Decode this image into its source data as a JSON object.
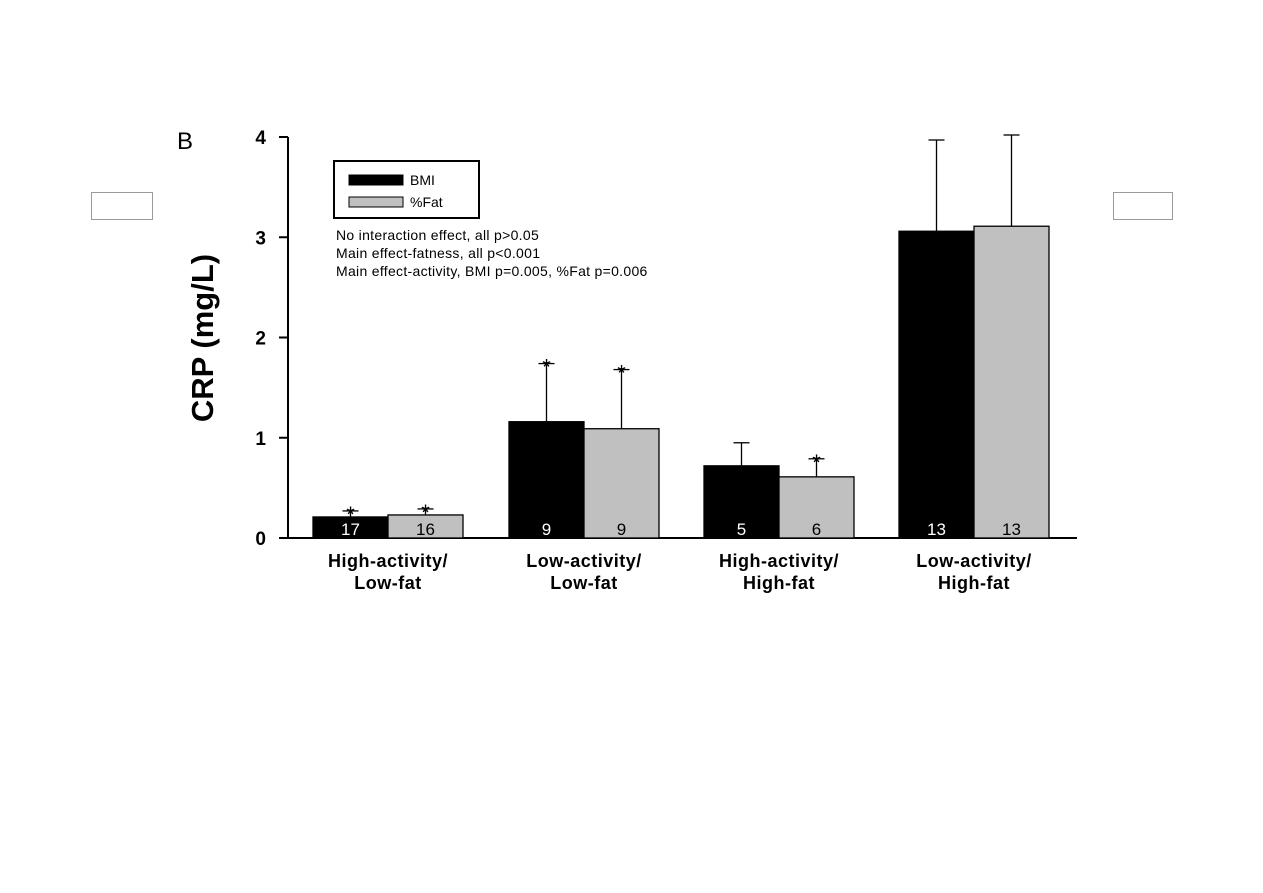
{
  "panel_label": "B",
  "chart_data": {
    "type": "bar",
    "categories": [
      [
        "High-activity/",
        "Low-fat"
      ],
      [
        "Low-activity/",
        "Low-fat"
      ],
      [
        "High-activity/",
        "High-fat"
      ],
      [
        "Low-activity/",
        "High-fat"
      ]
    ],
    "ylabel": "CRP (mg/L)",
    "ylim": [
      0,
      4
    ],
    "yticks": [
      "0",
      "1",
      "2",
      "3",
      "4"
    ],
    "series": [
      {
        "name": "BMI",
        "color": "#000000",
        "values": [
          0.21,
          1.16,
          0.72,
          3.06
        ],
        "error_upper": [
          0.27,
          1.74,
          0.95,
          3.97
        ],
        "n": [
          "17",
          "9",
          "5",
          "13"
        ],
        "significant": [
          true,
          true,
          false,
          false
        ],
        "n_color": "#ffffff"
      },
      {
        "name": "%Fat",
        "color": "#c0c0c0",
        "values": [
          0.23,
          1.09,
          0.61,
          3.11
        ],
        "error_upper": [
          0.29,
          1.68,
          0.79,
          4.02
        ],
        "n": [
          "16",
          "9",
          "6",
          "13"
        ],
        "significant": [
          true,
          true,
          true,
          false
        ],
        "n_color": "#000000"
      }
    ],
    "significance_marker": "*",
    "legend": {
      "placement": "top-left",
      "entries": [
        "BMI",
        "%Fat"
      ]
    },
    "annotations": [
      "No interaction effect, all p>0.05",
      "Main effect-fatness, all p<0.001",
      "Main effect-activity, BMI p=0.005, %Fat p=0.006"
    ],
    "grid": false
  }
}
